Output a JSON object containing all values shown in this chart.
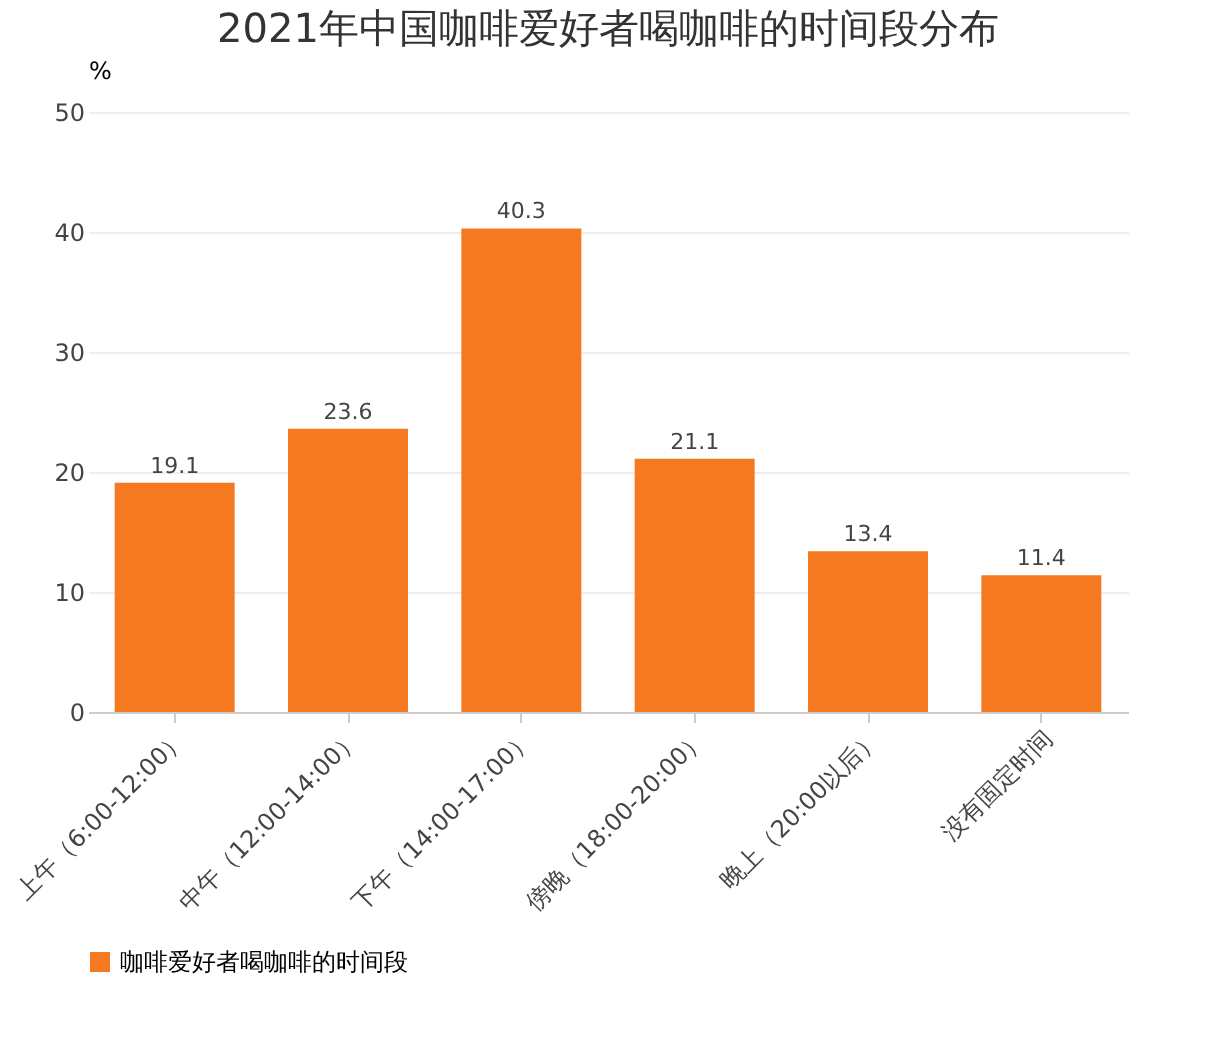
{
  "chart_data": {
    "type": "bar",
    "title": "2021年中国咖啡爱好者喝咖啡的时间段分布",
    "ylabel": "%",
    "categories": [
      "上午（6:00-12:00）",
      "中午（12:00-14:00）",
      "下午（14:00-17:00）",
      "傍晚（18:00-20:00）",
      "晚上（20:00以后）",
      "没有固定时间"
    ],
    "series": [
      {
        "name": "咖啡爱好者喝咖啡的时间段",
        "color": "#f47920",
        "values": [
          19.1,
          23.6,
          40.3,
          21.1,
          13.4,
          11.4
        ]
      }
    ],
    "ylim": [
      0,
      50
    ],
    "yticks": [
      0,
      10,
      20,
      30,
      40,
      50
    ],
    "grid": "y",
    "legend": "bottom",
    "data_labels": true
  }
}
